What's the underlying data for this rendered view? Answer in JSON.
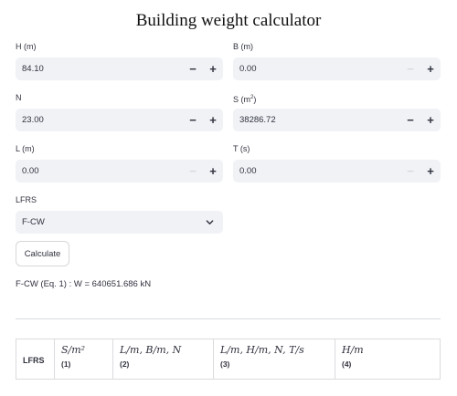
{
  "page": {
    "title": "Building weight calculator"
  },
  "fields": {
    "H": {
      "label": "H (m)",
      "value": "84.10",
      "minus_enabled": true
    },
    "B": {
      "label": "B (m)",
      "value": "0.00",
      "minus_enabled": false
    },
    "N": {
      "label": "N",
      "value": "23.00",
      "minus_enabled": true
    },
    "S": {
      "label_main": "S (m",
      "label_sup": "2",
      "label_end": ")",
      "value": "38286.72",
      "minus_enabled": true
    },
    "L": {
      "label": "L (m)",
      "value": "0.00",
      "minus_enabled": false
    },
    "T": {
      "label": "T (s)",
      "value": "0.00",
      "minus_enabled": false
    }
  },
  "stepper": {
    "minus": "−",
    "plus": "+"
  },
  "lfrs": {
    "label": "LFRS",
    "selected": "F-CW"
  },
  "calculate_label": "Calculate",
  "result_text": "F-CW (Eq. 1) : W = 640651.686 kN",
  "legend_table": {
    "header": "LFRS",
    "columns": [
      {
        "math": "S/m²",
        "number": "(1)"
      },
      {
        "math": "L/m, B/m, N",
        "number": "(2)"
      },
      {
        "math": "L/m, H/m, N, T/s",
        "number": "(3)"
      },
      {
        "math": "H/m",
        "number": "(4)"
      }
    ]
  },
  "icons": {
    "select_chevron": "chevron-down-icon"
  },
  "colors": {
    "input_bg": "#f0f2f6",
    "text": "#31333f",
    "border": "#dadbdf"
  }
}
